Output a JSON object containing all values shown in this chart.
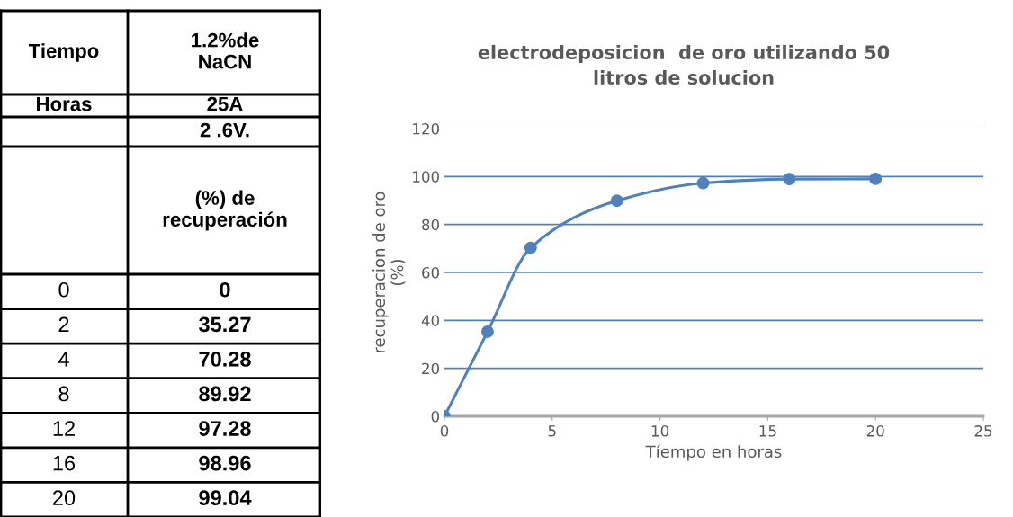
{
  "chart_data": {
    "type": "line",
    "title": "electrodeposicion  de oro utilizando 50\nlitros de solucion",
    "xlabel": "Tíempo en horas",
    "ylabel": "recuperacion de oro\n(%)",
    "x": [
      0,
      2,
      4,
      8,
      12,
      16,
      20
    ],
    "series": [
      {
        "color": "#4f81bd",
        "values": [
          0,
          35.27,
          70.28,
          89.92,
          97.28,
          98.96,
          99.04
        ]
      }
    ],
    "xlim": [
      0,
      25
    ],
    "xticks": [
      0,
      5,
      10,
      15,
      20,
      25
    ],
    "ylim": [
      0,
      120
    ],
    "yticks": [
      0,
      20,
      40,
      60,
      80,
      100,
      120
    ],
    "grid": "y",
    "marker": "circle",
    "line_style": "solid",
    "legend": false,
    "annotations": [
      "Tiempo",
      "1.2%de\nNaCN",
      "Horas",
      "25A",
      "2 .6V.",
      "(%) de\nrecuperación",
      "0",
      "0",
      "2",
      "35.27",
      "4",
      "70.28",
      "8",
      "89.92",
      "12",
      "97.28",
      "16",
      "98.96",
      "20",
      "99.04"
    ]
  }
}
